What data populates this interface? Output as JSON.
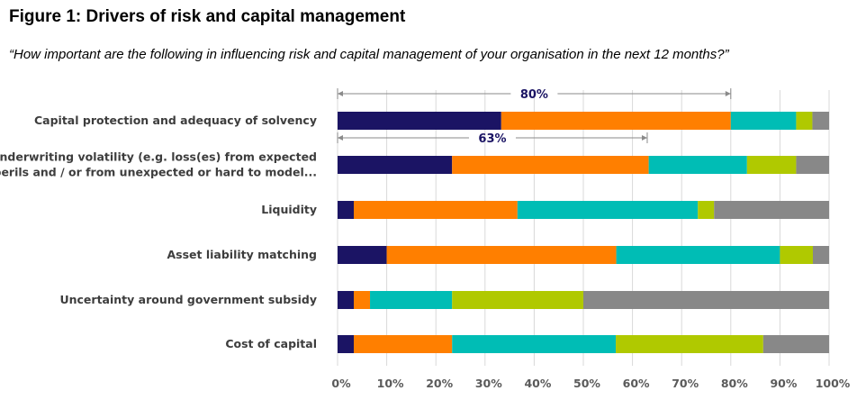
{
  "figure": {
    "title": "Figure 1: Drivers of risk and capital management",
    "subtitle": "“How important are the following in influencing risk and capital management of your organisation in the next 12 months?”"
  },
  "chart_data": {
    "type": "bar",
    "orientation": "horizontal",
    "stacked": true,
    "categories": [
      [
        "Capital protection and adequacy of solvency"
      ],
      [
        "Underwriting volatility (e.g. loss(es) from expected",
        "perils and / or from unexpected or hard to model..."
      ],
      [
        "Liquidity"
      ],
      [
        "Asset liability matching"
      ],
      [
        "Uncertainty around government subsidy"
      ],
      [
        "Cost of capital"
      ]
    ],
    "series": [
      {
        "color": "#1b1464",
        "values": [
          33.3,
          23.3,
          3.3,
          10.0,
          3.3,
          3.3
        ]
      },
      {
        "color": "#ff7f00",
        "values": [
          46.7,
          40.0,
          33.3,
          46.7,
          3.3,
          20.0
        ]
      },
      {
        "color": "#00bdb5",
        "values": [
          13.3,
          20.0,
          36.7,
          33.3,
          16.7,
          33.3
        ]
      },
      {
        "color": "#b0c900",
        "values": [
          3.3,
          10.0,
          3.3,
          6.7,
          26.7,
          30.0
        ]
      },
      {
        "color": "#888888",
        "values": [
          3.4,
          6.7,
          23.4,
          3.3,
          50.0,
          13.4
        ]
      }
    ],
    "xlim": [
      0,
      100
    ],
    "x_ticks": [
      "0%",
      "10%",
      "20%",
      "30%",
      "40%",
      "50%",
      "60%",
      "70%",
      "80%",
      "90%",
      "100%"
    ],
    "annotations": [
      {
        "category_index": 0,
        "from": 0,
        "to": 80,
        "label": "80%"
      },
      {
        "category_index": 1,
        "from": 0,
        "to": 63,
        "label": "63%"
      }
    ],
    "grid": true,
    "legend": false
  }
}
